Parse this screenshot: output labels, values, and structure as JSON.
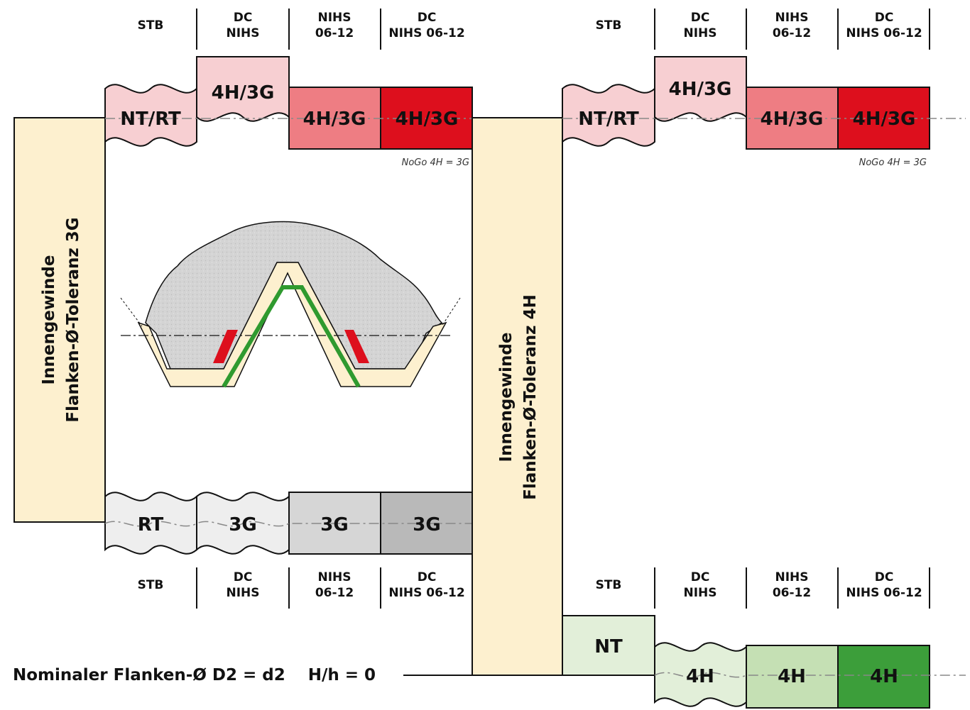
{
  "colors": {
    "beige": "#fdf0cf",
    "pink_light": "#f7cfd2",
    "pink_mid": "#ee7d83",
    "red": "#dd0f1d",
    "grey_light": "#eeeeee",
    "grey_mid": "#d6d6d6",
    "grey_dark": "#b9b9b9",
    "green_light": "#e2efd9",
    "green_mid": "#c5e0b4",
    "green_dark": "#3c9e3a",
    "thread_green": "#2f9a2f",
    "thread_red": "#dd0f1d",
    "thread_beige": "#fdf0cf",
    "body_grey": "#d4d4d4"
  },
  "headers": {
    "stb": "STB",
    "dc_nihs": [
      "DC",
      "NIHS"
    ],
    "nihs_0612": [
      "NIHS",
      "06-12"
    ],
    "dc_nihs_0612": [
      "DC",
      "NIHS 06-12"
    ]
  },
  "left_panel": {
    "label": [
      "Innengewinde",
      "Flanken-Ø-Toleranz 3G"
    ],
    "top_row": [
      "NT/RT",
      "4H/3G",
      "4H/3G",
      "4H/3G"
    ],
    "note": "NoGo 4H = 3G",
    "bottom_row": [
      "RT",
      "3G",
      "3G",
      "3G"
    ]
  },
  "right_panel": {
    "label": [
      "Innengewinde",
      "Flanken-Ø-Toleranz 4H"
    ],
    "top_row": [
      "NT/RT",
      "4H/3G",
      "4H/3G",
      "4H/3G"
    ],
    "note": "NoGo 4H = 3G",
    "bottom_row": [
      "NT",
      "4H",
      "4H",
      "4H"
    ]
  },
  "nominal_label": "Nominaler Flanken-Ø D2 = d2    H/h = 0"
}
